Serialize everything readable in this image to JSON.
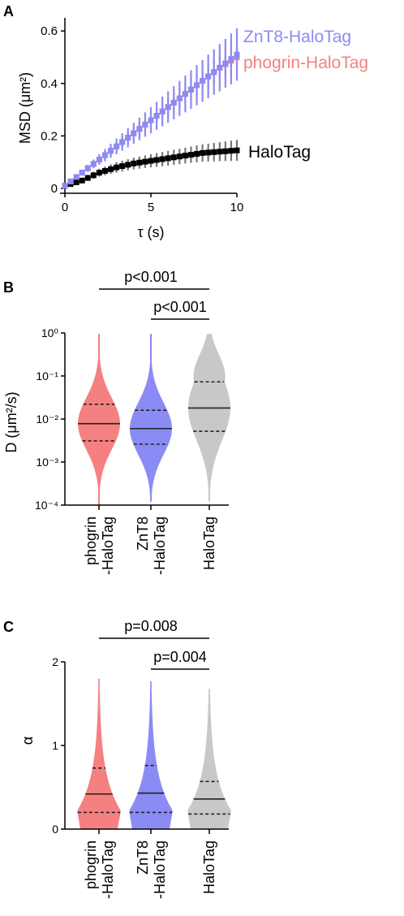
{
  "panels": {
    "a": {
      "letter": "A",
      "legend": [
        {
          "label": "ZnT8-HaloTag",
          "color": "#8b8bf5"
        },
        {
          "label": "phogrin-HaloTag",
          "color": "#f58080"
        },
        {
          "label": "HaloTag",
          "color": "#000000"
        }
      ]
    },
    "b": {
      "letter": "B",
      "sig": [
        {
          "label": "p<0.001",
          "from": 0,
          "to": 2
        },
        {
          "label": "p<0.001",
          "from": 1,
          "to": 2
        }
      ]
    },
    "c": {
      "letter": "C",
      "sig": [
        {
          "label": "p=0.008",
          "from": 0,
          "to": 2
        },
        {
          "label": "p=0.004",
          "from": 1,
          "to": 2
        }
      ]
    }
  },
  "chart_data": [
    {
      "type": "line",
      "xlabel": "τ (s)",
      "ylabel": "MSD (μm²)",
      "xlim": [
        0,
        10
      ],
      "ylim": [
        0,
        0.65
      ],
      "xticks": [
        "0",
        "5",
        "10"
      ],
      "yticks": [
        "0",
        "0.2",
        "0.4",
        "0.6"
      ],
      "series": [
        {
          "name": "ZnT8-HaloTag",
          "color": "#8b8bf5",
          "x": [
            0,
            1,
            2,
            3,
            4,
            5,
            6,
            7,
            8,
            9,
            10
          ],
          "y": [
            0.01,
            0.06,
            0.11,
            0.16,
            0.21,
            0.26,
            0.31,
            0.36,
            0.41,
            0.46,
            0.51
          ],
          "err": [
            0.005,
            0.01,
            0.02,
            0.03,
            0.04,
            0.05,
            0.06,
            0.07,
            0.08,
            0.09,
            0.1
          ]
        },
        {
          "name": "phogrin-HaloTag",
          "color": "#f58080",
          "x": [
            0,
            1,
            2,
            3,
            4,
            5,
            6,
            7,
            8,
            9,
            10
          ],
          "y": [
            0.01,
            0.06,
            0.11,
            0.16,
            0.21,
            0.26,
            0.31,
            0.36,
            0.41,
            0.46,
            0.5
          ],
          "err": [
            0.004,
            0.008,
            0.015,
            0.02,
            0.025,
            0.03,
            0.035,
            0.04,
            0.045,
            0.05,
            0.055
          ]
        },
        {
          "name": "HaloTag",
          "color": "#000000",
          "x": [
            0,
            1,
            2,
            3,
            4,
            5,
            6,
            7,
            8,
            9,
            10
          ],
          "y": [
            0.01,
            0.03,
            0.06,
            0.08,
            0.095,
            0.105,
            0.115,
            0.125,
            0.135,
            0.14,
            0.145
          ],
          "err": [
            0.004,
            0.01,
            0.015,
            0.02,
            0.022,
            0.025,
            0.028,
            0.03,
            0.033,
            0.036,
            0.04
          ]
        }
      ]
    },
    {
      "type": "violin",
      "ylabel": "D (μm²/s)",
      "yscale": "log",
      "ylim": [
        0.0001,
        1
      ],
      "yticks": [
        "10⁰",
        "10⁻¹",
        "10⁻²",
        "10⁻³",
        "10⁻⁴"
      ],
      "categories": [
        "phogrin\n-HaloTag",
        "ZnT8\n-HaloTag",
        "HaloTag"
      ],
      "colors": [
        "#f58080",
        "#8b8bf5",
        "#c8c8c8"
      ],
      "median": [
        0.0078,
        0.006,
        0.018
      ],
      "q1": [
        0.0031,
        0.0026,
        0.0052
      ],
      "q3": [
        0.022,
        0.016,
        0.073
      ],
      "min": [
        0.0001,
        0.00012,
        0.00012
      ],
      "max": [
        0.95,
        0.95,
        0.95
      ]
    },
    {
      "type": "violin",
      "ylabel": "α",
      "ylim": [
        0,
        2
      ],
      "yticks": [
        "0",
        "1",
        "2"
      ],
      "categories": [
        "phogrin\n-HaloTag",
        "ZnT8\n-HaloTag",
        "HaloTag"
      ],
      "colors": [
        "#f58080",
        "#8b8bf5",
        "#c8c8c8"
      ],
      "median": [
        0.42,
        0.43,
        0.36
      ],
      "q1": [
        0.2,
        0.2,
        0.18
      ],
      "q3": [
        0.73,
        0.76,
        0.57
      ],
      "min": [
        0,
        0,
        0
      ],
      "max": [
        1.8,
        1.77,
        1.68
      ]
    }
  ]
}
